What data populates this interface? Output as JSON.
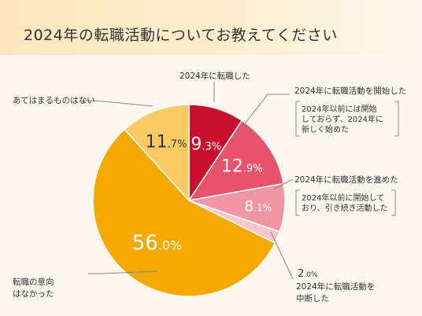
{
  "title": "2024年の転職活動についてお教えてください",
  "chart_data": {
    "type": "pie",
    "unit": "%",
    "slices": [
      {
        "label": "2024年に転職した",
        "value": 9.3,
        "color": "#c8102e",
        "note": []
      },
      {
        "label": "2024年に転職活動を開始した",
        "value": 12.9,
        "color": "#e8536b",
        "note": [
          "2024年以前には開始",
          "しておらず、2024年に",
          "新しく始めた"
        ]
      },
      {
        "label": "2024年に転職活動を進めた",
        "value": 8.1,
        "color": "#ef95a4",
        "note": [
          "2024年以前に開始して",
          "おり、引き続き活動した"
        ]
      },
      {
        "label": "2024年に転職活動を中断した",
        "value": 2.0,
        "color": "#f6c6cd",
        "note": []
      },
      {
        "label": "転職の意向はなかった",
        "value": 56.0,
        "color": "#f5a800",
        "note": []
      },
      {
        "label": "あてはまるものはない",
        "value": 11.7,
        "color": "#fbc963",
        "note": []
      }
    ]
  }
}
